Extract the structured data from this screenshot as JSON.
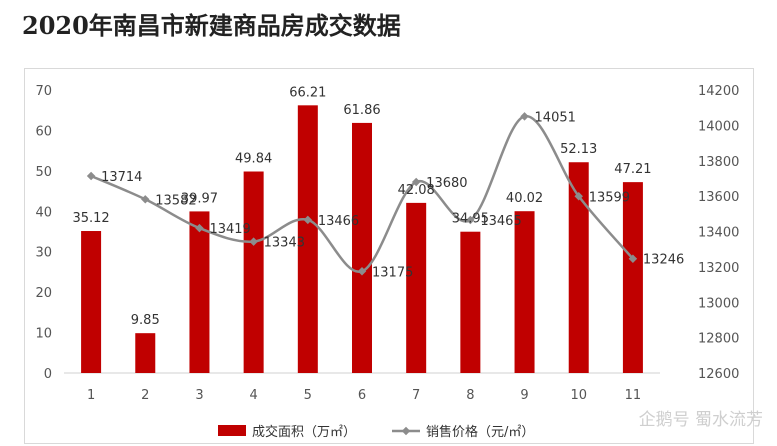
{
  "page": {
    "title": "2020年南昌市新建商品房成交数据"
  },
  "watermark": {
    "text": "企鹅号 蜀水流芳"
  },
  "chart_data": {
    "type": "bar+line",
    "categories": [
      "1",
      "2",
      "3",
      "4",
      "5",
      "6",
      "7",
      "8",
      "9",
      "10",
      "11"
    ],
    "series": [
      {
        "name": "成交面积（万㎡）",
        "type": "bar",
        "axis": "left",
        "color": "#c00000",
        "values": [
          35.12,
          9.85,
          39.97,
          49.84,
          66.21,
          61.86,
          42.08,
          34.95,
          40.02,
          52.13,
          47.21
        ]
      },
      {
        "name": "销售价格（元/㎡）",
        "type": "line",
        "axis": "right",
        "color": "#8c8c8c",
        "values": [
          13714,
          13582,
          13419,
          13343,
          13466,
          13175,
          13680,
          13465,
          14051,
          13599,
          13246
        ]
      }
    ],
    "y_left": {
      "min": 0,
      "max": 70,
      "ticks": [
        "0",
        "10",
        "20",
        "30",
        "40",
        "50",
        "60",
        "70"
      ]
    },
    "y_right": {
      "min": 12600,
      "max": 14200,
      "ticks": [
        "12600",
        "12800",
        "13000",
        "13200",
        "13400",
        "13600",
        "13800",
        "14000",
        "14200"
      ]
    },
    "legend_position": "bottom",
    "grid": false
  }
}
